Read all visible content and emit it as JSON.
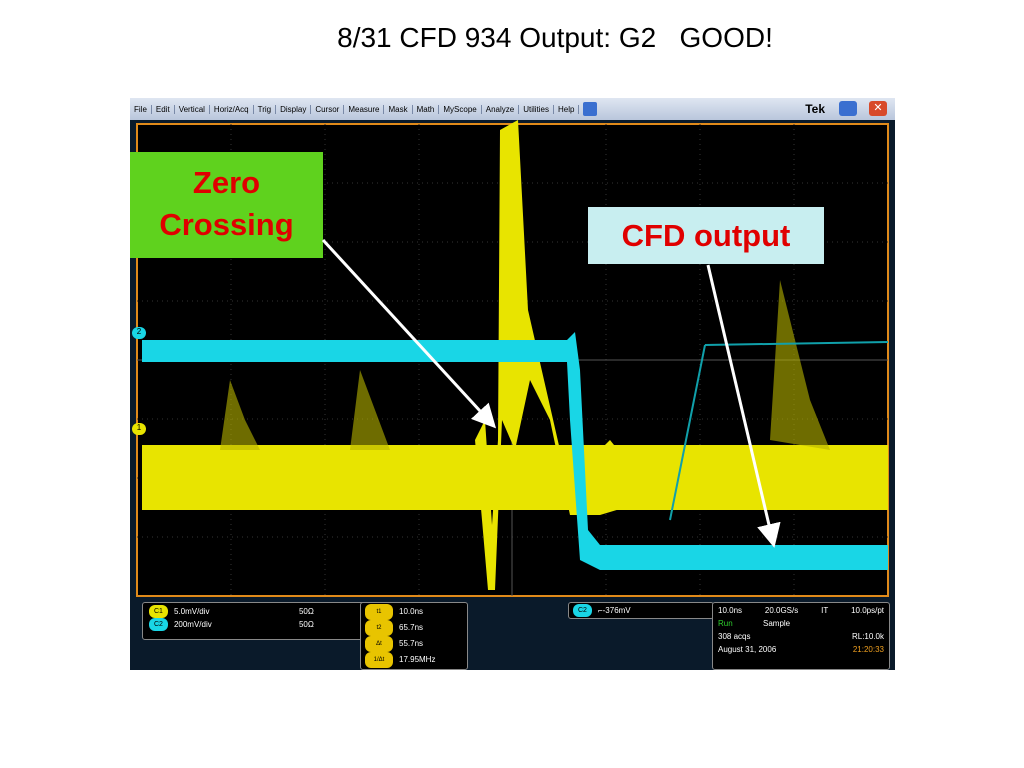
{
  "title": "8/31 CFD 934 Output: G2   GOOD!",
  "menu": [
    "File",
    "Edit",
    "Vertical",
    "Horiz/Acq",
    "Trig",
    "Display",
    "Cursor",
    "Measure",
    "Mask",
    "Math",
    "MyScope",
    "Analyze",
    "Utilities",
    "Help"
  ],
  "brand": "Tek",
  "markers": [
    "2",
    "1"
  ],
  "annotations": {
    "zero_crossing": [
      "Zero",
      "Crossing"
    ],
    "cfd_output": "CFD output"
  },
  "channels": [
    {
      "badge": "C1",
      "scale": "5.0mV/div",
      "impedance": "50Ω"
    },
    {
      "badge": "C2",
      "scale": "200mV/div",
      "impedance": "50Ω"
    }
  ],
  "cursors": [
    {
      "badge": "t1",
      "value": "10.0ns"
    },
    {
      "badge": "t2",
      "value": "65.7ns"
    },
    {
      "badge": "Δt",
      "value": "55.7ns"
    },
    {
      "badge": "1/Δt",
      "value": "17.95MHz"
    }
  ],
  "trigger": {
    "badge": "C2",
    "level": "-376mV"
  },
  "acquisition": {
    "horizontal": "10.0ns",
    "rate": "20.0GS/s",
    "mode": "IT",
    "resolution": "10.0ps/pt",
    "state": "Run",
    "sample": "Sample",
    "acqs": "308 acqs",
    "record": "RL:10.0k",
    "date": "August 31, 2006",
    "time": "21:20:33"
  }
}
